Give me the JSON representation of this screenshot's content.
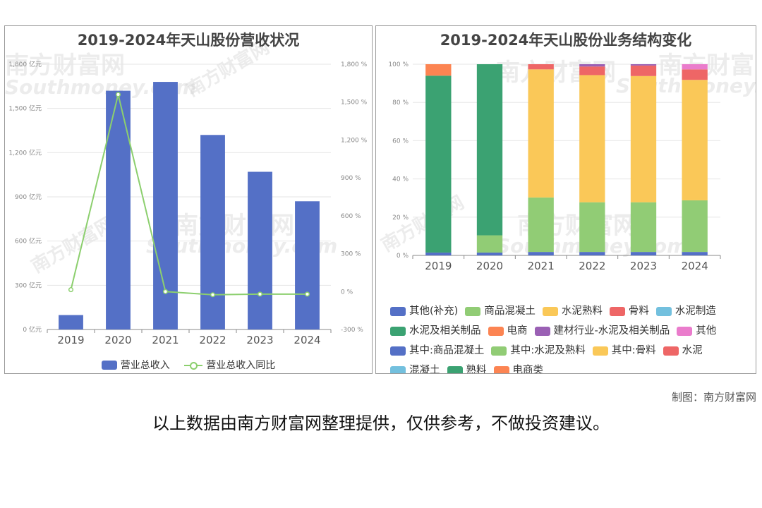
{
  "credit": "制图：南方财富网",
  "disclaimer": "以上数据由南方财富网整理提供，仅供参考，不做投资建议。",
  "watermark": {
    "cn": "南方财富网",
    "en": "Southmoney.com"
  },
  "chart_data": [
    {
      "type": "bar",
      "title": "2019-2024年天山股份营收状况",
      "categories": [
        "2019",
        "2020",
        "2021",
        "2022",
        "2023",
        "2024"
      ],
      "series": [
        {
          "name": "营业总收入",
          "type": "bar",
          "axis": "left",
          "color": "#5470c6",
          "values": [
            98,
            1620,
            1680,
            1320,
            1070,
            870
          ]
        },
        {
          "name": "营业总收入同比",
          "type": "line",
          "axis": "right",
          "color": "#8ccf6e",
          "values": [
            15,
            1560,
            0,
            -25,
            -20,
            -20
          ]
        }
      ],
      "left_axis": {
        "ticks": [
          "0 亿元",
          "300 亿元",
          "600 亿元",
          "900 亿元",
          "1,200 亿元",
          "1,500 亿元",
          "1,800 亿元"
        ],
        "ylim": [
          0,
          1800
        ]
      },
      "right_axis": {
        "ticks": [
          "-300 %",
          "0 %",
          "300 %",
          "600 %",
          "900 %",
          "1,200 %",
          "1,500 %",
          "1,800 %"
        ],
        "ylim": [
          -300,
          1800
        ]
      },
      "grid": true,
      "legend": "bottom"
    },
    {
      "type": "bar",
      "stacked": true,
      "title": "2019-2024年天山股份业务结构变化",
      "categories": [
        "2019",
        "2020",
        "2021",
        "2022",
        "2023",
        "2024"
      ],
      "y_ticks": [
        "0 %",
        "20 %",
        "40 %",
        "60 %",
        "80 %",
        "100 %"
      ],
      "ylim": [
        0,
        100
      ],
      "grid": true,
      "legend": "bottom",
      "legend_entries": [
        {
          "name": "其他(补充)",
          "color": "#5470c6"
        },
        {
          "name": "商品混凝土",
          "color": "#91cc75"
        },
        {
          "name": "水泥熟料",
          "color": "#fac858"
        },
        {
          "name": "骨料",
          "color": "#ee6666"
        },
        {
          "name": "水泥制造",
          "color": "#73c0de"
        },
        {
          "name": "水泥及相关制品",
          "color": "#3ba272"
        },
        {
          "name": "电商",
          "color": "#fc8452"
        },
        {
          "name": "建材行业-水泥及相关制品",
          "color": "#9a60b4"
        },
        {
          "name": "其他",
          "color": "#ea7ccc"
        },
        {
          "name": "其中:商品混凝土",
          "color": "#5470c6"
        },
        {
          "name": "其中:水泥及熟料",
          "color": "#91cc75"
        },
        {
          "name": "其中:骨料",
          "color": "#fac858"
        },
        {
          "name": "水泥",
          "color": "#ee6666"
        },
        {
          "name": "混凝土",
          "color": "#73c0de"
        },
        {
          "name": "熟料",
          "color": "#3ba272"
        },
        {
          "name": "电商类",
          "color": "#fc8452"
        }
      ],
      "series": [
        {
          "name": "其他(补充)",
          "color": "#5470c6",
          "values": [
            1.5,
            1.5,
            1.8,
            1.8,
            1.8,
            1.8
          ]
        },
        {
          "name": "商品混凝土",
          "color": "#91cc75",
          "values": [
            0,
            9,
            28.5,
            26,
            26,
            27
          ]
        },
        {
          "name": "水泥熟料",
          "color": "#fac858",
          "values": [
            0,
            0,
            67,
            66.5,
            66,
            63
          ]
        },
        {
          "name": "骨料",
          "color": "#ee6666",
          "values": [
            0,
            0,
            2.7,
            4.5,
            5.5,
            5.5
          ]
        },
        {
          "name": "水泥及相关制品",
          "color": "#3ba272",
          "values": [
            92.5,
            89.5,
            0,
            0,
            0,
            0
          ]
        },
        {
          "name": "电商",
          "color": "#fc8452",
          "values": [
            6,
            0,
            0,
            0,
            0,
            0
          ]
        },
        {
          "name": "建材行业-水泥及相关制品",
          "color": "#9a60b4",
          "values": [
            0,
            0,
            0,
            1.2,
            0.7,
            0
          ]
        },
        {
          "name": "其他",
          "color": "#ea7ccc",
          "values": [
            0,
            0,
            0,
            0,
            0,
            2.7
          ]
        }
      ]
    }
  ]
}
